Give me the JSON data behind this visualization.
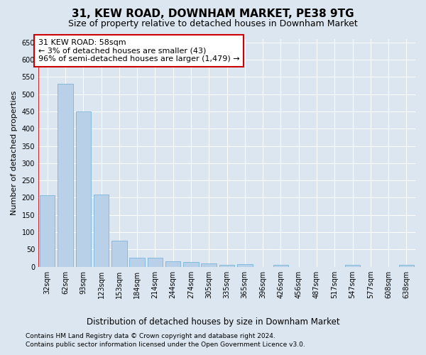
{
  "title": "31, KEW ROAD, DOWNHAM MARKET, PE38 9TG",
  "subtitle": "Size of property relative to detached houses in Downham Market",
  "xlabel": "Distribution of detached houses by size in Downham Market",
  "ylabel": "Number of detached properties",
  "footnote1": "Contains HM Land Registry data © Crown copyright and database right 2024.",
  "footnote2": "Contains public sector information licensed under the Open Government Licence v3.0.",
  "categories": [
    "32sqm",
    "62sqm",
    "93sqm",
    "123sqm",
    "153sqm",
    "184sqm",
    "214sqm",
    "244sqm",
    "274sqm",
    "305sqm",
    "335sqm",
    "365sqm",
    "396sqm",
    "426sqm",
    "456sqm",
    "487sqm",
    "517sqm",
    "547sqm",
    "577sqm",
    "608sqm",
    "638sqm"
  ],
  "values": [
    207,
    530,
    450,
    210,
    75,
    27,
    27,
    15,
    13,
    10,
    5,
    8,
    0,
    5,
    0,
    0,
    0,
    5,
    0,
    0,
    5
  ],
  "bar_color": "#b8d0e8",
  "bar_edgecolor": "#6baed6",
  "annotation_line1": "31 KEW ROAD: 58sqm",
  "annotation_line2": "← 3% of detached houses are smaller (43)",
  "annotation_line3": "96% of semi-detached houses are larger (1,479) →",
  "annotation_box_edgecolor": "#cc0000",
  "vline_color": "#cc0000",
  "vline_position": -0.5,
  "ylim": [
    0,
    660
  ],
  "yticks": [
    0,
    50,
    100,
    150,
    200,
    250,
    300,
    350,
    400,
    450,
    500,
    550,
    600,
    650
  ],
  "background_color": "#dce6f0",
  "grid_color": "#ffffff",
  "title_fontsize": 11,
  "subtitle_fontsize": 9,
  "tick_fontsize": 7,
  "ylabel_fontsize": 8,
  "xlabel_fontsize": 8.5,
  "annotation_fontsize": 8,
  "footnote_fontsize": 6.5
}
